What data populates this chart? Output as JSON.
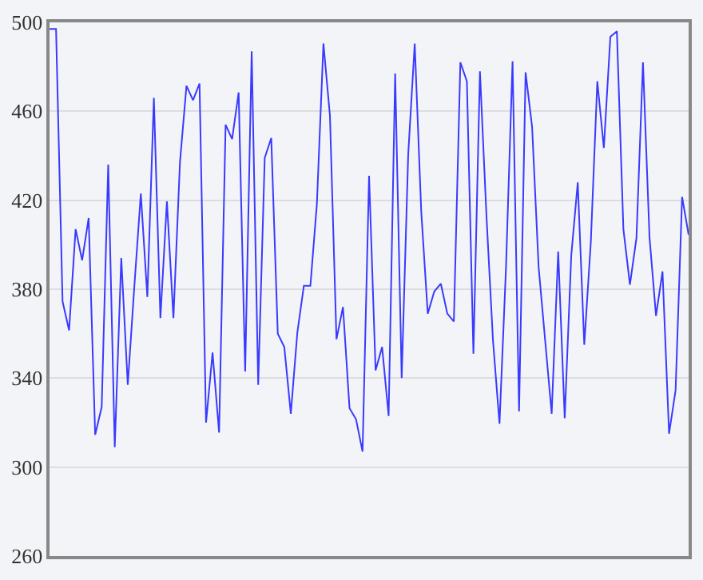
{
  "chart_data": {
    "type": "line",
    "categories": [
      null,
      null,
      null,
      null,
      null,
      null,
      null,
      null,
      null,
      null,
      null,
      null,
      null,
      null,
      null,
      null,
      null,
      null,
      null,
      null,
      null,
      null,
      null,
      null,
      null,
      null,
      null,
      null,
      null,
      null,
      null,
      null,
      null,
      null,
      null,
      null,
      null,
      null,
      null,
      null,
      null,
      null,
      null,
      null,
      null,
      null,
      null,
      null,
      null,
      null,
      null,
      null,
      null,
      null,
      null,
      null,
      null,
      null,
      null,
      null,
      null,
      null,
      null,
      null,
      null,
      null,
      null,
      null,
      null,
      null,
      null,
      null,
      null,
      null,
      null,
      null,
      null,
      null,
      null,
      null,
      null,
      null,
      null,
      null,
      null,
      null,
      null,
      null,
      null,
      null,
      null,
      null,
      null,
      null,
      null,
      null,
      null,
      null,
      null
    ],
    "series": [
      {
        "color": "#3a3aff",
        "values": [
          497,
          497,
          374.5,
          361.5,
          407,
          393,
          412,
          314.5,
          327,
          436,
          309,
          394,
          337,
          381,
          423,
          376.5,
          466,
          367,
          419.5,
          367,
          437,
          471.5,
          465,
          472.5,
          320,
          351.5,
          315.5,
          454,
          447.5,
          468.5,
          343,
          487,
          337,
          439,
          448,
          360,
          354,
          324,
          360.5,
          381.5,
          381.5,
          418.5,
          490.5,
          458,
          357.5,
          372,
          326.5,
          321.5,
          307,
          431,
          343.5,
          354,
          323,
          477,
          340,
          440.5,
          490.5,
          415,
          369,
          379,
          382.5,
          369,
          365.5,
          482,
          473.5,
          351,
          478,
          413,
          357,
          319.5,
          390,
          482.5,
          325,
          477.5,
          453,
          390,
          357,
          324,
          397,
          322,
          395,
          428,
          355,
          401,
          473.5,
          443.5,
          493.5,
          496,
          407,
          382,
          403,
          482,
          403.5,
          368,
          388,
          315,
          334.5,
          421.5,
          404.5
        ]
      }
    ],
    "ylim": [
      260,
      500
    ],
    "yticks": [
      260,
      300,
      340,
      380,
      420,
      460,
      500
    ],
    "grid": "y",
    "tick_labels": "y",
    "marker": "none",
    "line_style": "solid"
  }
}
